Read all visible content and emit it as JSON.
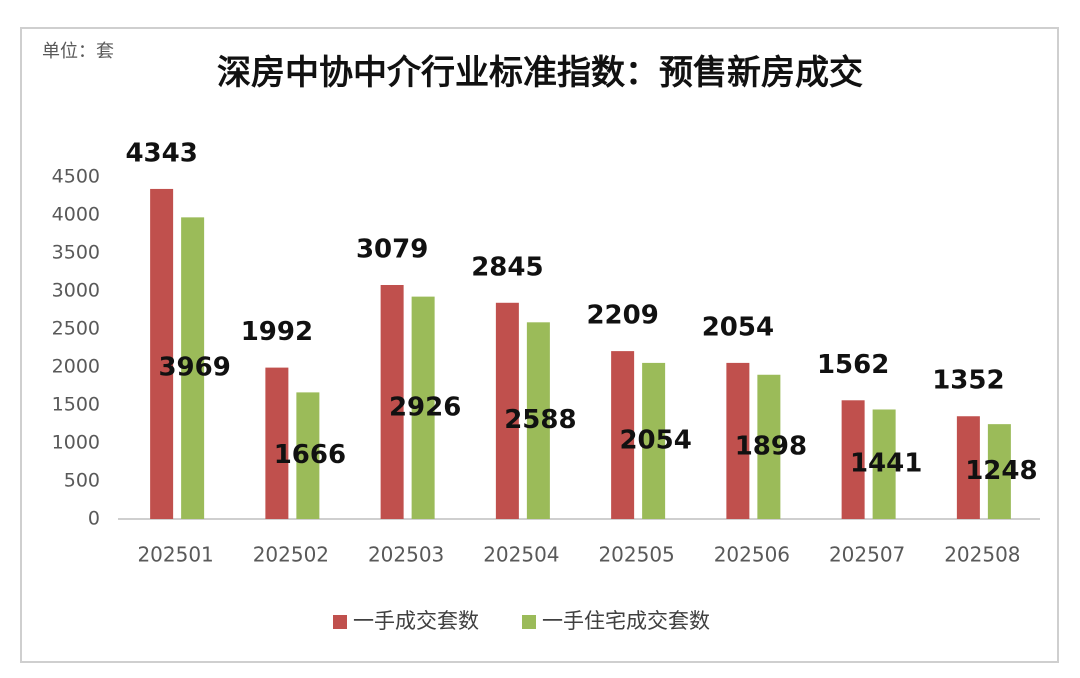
{
  "chart_data": {
    "type": "bar",
    "title": "深房中协中介行业标准指数：预售新房成交",
    "unit": "单位：套",
    "categories": [
      "202501",
      "202502",
      "202503",
      "202504",
      "202505",
      "202506",
      "202507",
      "202508"
    ],
    "series": [
      {
        "name": "一手成交套数",
        "color": "#c0504d",
        "values": [
          4343,
          1992,
          3079,
          2845,
          2209,
          2054,
          1562,
          1352
        ]
      },
      {
        "name": "一手住宅成交套数",
        "color": "#9bbb59",
        "values": [
          3969,
          1666,
          2926,
          2588,
          2054,
          1898,
          1441,
          1248
        ]
      }
    ],
    "ylim": [
      0,
      4500
    ],
    "yticks": [
      0,
      500,
      1000,
      1500,
      2000,
      2500,
      3000,
      3500,
      4000,
      4500
    ],
    "grid": false,
    "legend": "bottom"
  }
}
